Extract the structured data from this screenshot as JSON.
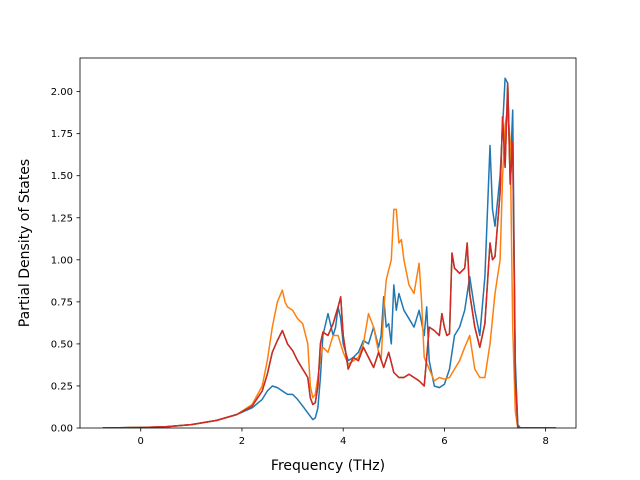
{
  "figure": {
    "background": "#ffffff"
  },
  "chart_data": {
    "type": "line",
    "title": "",
    "xlabel": "Frequency (THz)",
    "ylabel": "Partial Density of States",
    "xlim": [
      -1.2,
      8.6
    ],
    "ylim": [
      0.0,
      2.2
    ],
    "xticks": [
      0,
      2,
      4,
      6,
      8
    ],
    "yticks": [
      0.0,
      0.25,
      0.5,
      0.75,
      1.0,
      1.25,
      1.5,
      1.75,
      2.0
    ],
    "xtick_labels": [
      "0",
      "2",
      "4",
      "6",
      "8"
    ],
    "ytick_labels": [
      "0.00",
      "0.25",
      "0.50",
      "0.75",
      "1.00",
      "1.25",
      "1.50",
      "1.75",
      "2.00"
    ],
    "grid": false,
    "legend": null,
    "series": [
      {
        "color": "#1f77b4",
        "points": [
          [
            -0.75,
            0
          ],
          [
            0,
            0.003
          ],
          [
            0.5,
            0.008
          ],
          [
            1,
            0.02
          ],
          [
            1.5,
            0.045
          ],
          [
            1.9,
            0.08
          ],
          [
            2.2,
            0.12
          ],
          [
            2.4,
            0.17
          ],
          [
            2.5,
            0.22
          ],
          [
            2.6,
            0.25
          ],
          [
            2.7,
            0.24
          ],
          [
            2.8,
            0.22
          ],
          [
            2.9,
            0.2
          ],
          [
            3.0,
            0.2
          ],
          [
            3.1,
            0.17
          ],
          [
            3.2,
            0.13
          ],
          [
            3.3,
            0.09
          ],
          [
            3.4,
            0.05
          ],
          [
            3.45,
            0.06
          ],
          [
            3.5,
            0.12
          ],
          [
            3.55,
            0.3
          ],
          [
            3.6,
            0.55
          ],
          [
            3.7,
            0.68
          ],
          [
            3.8,
            0.55
          ],
          [
            3.85,
            0.6
          ],
          [
            3.9,
            0.72
          ],
          [
            3.95,
            0.65
          ],
          [
            4.0,
            0.5
          ],
          [
            4.1,
            0.4
          ],
          [
            4.2,
            0.42
          ],
          [
            4.3,
            0.45
          ],
          [
            4.4,
            0.52
          ],
          [
            4.5,
            0.5
          ],
          [
            4.6,
            0.6
          ],
          [
            4.7,
            0.48
          ],
          [
            4.75,
            0.55
          ],
          [
            4.8,
            0.78
          ],
          [
            4.85,
            0.6
          ],
          [
            4.9,
            0.62
          ],
          [
            4.95,
            0.5
          ],
          [
            5.0,
            0.85
          ],
          [
            5.05,
            0.7
          ],
          [
            5.1,
            0.8
          ],
          [
            5.2,
            0.7
          ],
          [
            5.3,
            0.65
          ],
          [
            5.4,
            0.6
          ],
          [
            5.45,
            0.65
          ],
          [
            5.5,
            0.7
          ],
          [
            5.6,
            0.55
          ],
          [
            5.65,
            0.72
          ],
          [
            5.7,
            0.4
          ],
          [
            5.8,
            0.25
          ],
          [
            5.9,
            0.24
          ],
          [
            6.0,
            0.26
          ],
          [
            6.1,
            0.35
          ],
          [
            6.2,
            0.55
          ],
          [
            6.3,
            0.6
          ],
          [
            6.4,
            0.7
          ],
          [
            6.5,
            0.9
          ],
          [
            6.6,
            0.7
          ],
          [
            6.7,
            0.55
          ],
          [
            6.8,
            0.9
          ],
          [
            6.9,
            1.68
          ],
          [
            6.95,
            1.3
          ],
          [
            7.0,
            1.2
          ],
          [
            7.1,
            1.5
          ],
          [
            7.2,
            2.08
          ],
          [
            7.25,
            2.05
          ],
          [
            7.3,
            1.5
          ],
          [
            7.35,
            1.89
          ],
          [
            7.4,
            0.4
          ],
          [
            7.45,
            0.02
          ],
          [
            7.5,
            0
          ],
          [
            8.2,
            0
          ]
        ]
      },
      {
        "color": "#ff7f0e",
        "points": [
          [
            -0.75,
            0
          ],
          [
            0,
            0.003
          ],
          [
            0.5,
            0.008
          ],
          [
            1,
            0.02
          ],
          [
            1.5,
            0.045
          ],
          [
            1.9,
            0.08
          ],
          [
            2.2,
            0.14
          ],
          [
            2.4,
            0.25
          ],
          [
            2.5,
            0.4
          ],
          [
            2.6,
            0.6
          ],
          [
            2.7,
            0.75
          ],
          [
            2.8,
            0.82
          ],
          [
            2.85,
            0.75
          ],
          [
            2.9,
            0.72
          ],
          [
            3.0,
            0.7
          ],
          [
            3.1,
            0.65
          ],
          [
            3.2,
            0.62
          ],
          [
            3.3,
            0.5
          ],
          [
            3.35,
            0.25
          ],
          [
            3.4,
            0.18
          ],
          [
            3.45,
            0.2
          ],
          [
            3.5,
            0.3
          ],
          [
            3.55,
            0.42
          ],
          [
            3.6,
            0.48
          ],
          [
            3.7,
            0.45
          ],
          [
            3.8,
            0.55
          ],
          [
            3.9,
            0.55
          ],
          [
            4.0,
            0.45
          ],
          [
            4.1,
            0.38
          ],
          [
            4.2,
            0.4
          ],
          [
            4.3,
            0.42
          ],
          [
            4.4,
            0.5
          ],
          [
            4.5,
            0.68
          ],
          [
            4.6,
            0.6
          ],
          [
            4.7,
            0.45
          ],
          [
            4.75,
            0.4
          ],
          [
            4.8,
            0.7
          ],
          [
            4.85,
            0.88
          ],
          [
            4.9,
            0.94
          ],
          [
            4.95,
            1.0
          ],
          [
            5.0,
            1.3
          ],
          [
            5.05,
            1.3
          ],
          [
            5.1,
            1.1
          ],
          [
            5.15,
            1.12
          ],
          [
            5.2,
            1.0
          ],
          [
            5.3,
            0.85
          ],
          [
            5.4,
            0.8
          ],
          [
            5.5,
            0.98
          ],
          [
            5.55,
            0.75
          ],
          [
            5.6,
            0.42
          ],
          [
            5.7,
            0.35
          ],
          [
            5.8,
            0.28
          ],
          [
            5.9,
            0.3
          ],
          [
            6.0,
            0.29
          ],
          [
            6.1,
            0.3
          ],
          [
            6.2,
            0.35
          ],
          [
            6.3,
            0.4
          ],
          [
            6.4,
            0.48
          ],
          [
            6.5,
            0.55
          ],
          [
            6.6,
            0.35
          ],
          [
            6.7,
            0.3
          ],
          [
            6.8,
            0.3
          ],
          [
            6.9,
            0.5
          ],
          [
            7.0,
            0.8
          ],
          [
            7.1,
            1.0
          ],
          [
            7.15,
            1.5
          ],
          [
            7.2,
            1.8
          ],
          [
            7.25,
            1.9
          ],
          [
            7.3,
            1.7
          ],
          [
            7.35,
            0.6
          ],
          [
            7.4,
            0.1
          ],
          [
            7.45,
            0
          ],
          [
            8.2,
            0
          ]
        ]
      },
      {
        "color": "#2ca02c",
        "points": [
          [
            -0.75,
            0
          ],
          [
            0,
            0.003
          ],
          [
            0.5,
            0.008
          ],
          [
            1,
            0.02
          ],
          [
            1.5,
            0.045
          ],
          [
            1.9,
            0.08
          ],
          [
            2.2,
            0.13
          ],
          [
            2.4,
            0.22
          ],
          [
            2.5,
            0.32
          ],
          [
            2.6,
            0.45
          ],
          [
            2.7,
            0.52
          ],
          [
            2.8,
            0.58
          ],
          [
            2.9,
            0.5
          ],
          [
            3.0,
            0.46
          ],
          [
            3.1,
            0.4
          ],
          [
            3.2,
            0.35
          ],
          [
            3.3,
            0.3
          ],
          [
            3.35,
            0.18
          ],
          [
            3.4,
            0.14
          ],
          [
            3.45,
            0.15
          ],
          [
            3.5,
            0.25
          ],
          [
            3.55,
            0.5
          ],
          [
            3.6,
            0.57
          ],
          [
            3.7,
            0.55
          ],
          [
            3.8,
            0.62
          ],
          [
            3.9,
            0.72
          ],
          [
            3.95,
            0.78
          ],
          [
            4.0,
            0.55
          ],
          [
            4.1,
            0.35
          ],
          [
            4.2,
            0.42
          ],
          [
            4.3,
            0.4
          ],
          [
            4.4,
            0.48
          ],
          [
            4.5,
            0.42
          ],
          [
            4.6,
            0.36
          ],
          [
            4.7,
            0.45
          ],
          [
            4.8,
            0.36
          ],
          [
            4.9,
            0.45
          ],
          [
            5.0,
            0.33
          ],
          [
            5.1,
            0.3
          ],
          [
            5.2,
            0.3
          ],
          [
            5.3,
            0.32
          ],
          [
            5.4,
            0.3
          ],
          [
            5.5,
            0.28
          ],
          [
            5.6,
            0.25
          ],
          [
            5.65,
            0.42
          ],
          [
            5.7,
            0.6
          ],
          [
            5.8,
            0.58
          ],
          [
            5.9,
            0.55
          ],
          [
            5.95,
            0.68
          ],
          [
            6.0,
            0.6
          ],
          [
            6.05,
            0.55
          ],
          [
            6.1,
            0.56
          ],
          [
            6.15,
            1.04
          ],
          [
            6.2,
            0.95
          ],
          [
            6.3,
            0.92
          ],
          [
            6.4,
            0.95
          ],
          [
            6.45,
            1.1
          ],
          [
            6.5,
            0.8
          ],
          [
            6.6,
            0.6
          ],
          [
            6.7,
            0.48
          ],
          [
            6.8,
            0.62
          ],
          [
            6.9,
            1.1
          ],
          [
            6.95,
            1.0
          ],
          [
            7.0,
            1.02
          ],
          [
            7.1,
            1.4
          ],
          [
            7.15,
            1.85
          ],
          [
            7.2,
            1.55
          ],
          [
            7.25,
            2.05
          ],
          [
            7.3,
            1.45
          ],
          [
            7.35,
            1.7
          ],
          [
            7.4,
            0.3
          ],
          [
            7.45,
            0
          ],
          [
            8.2,
            0
          ]
        ]
      },
      {
        "color": "#d62728",
        "points": [
          [
            -0.75,
            0
          ],
          [
            0,
            0.003
          ],
          [
            0.5,
            0.008
          ],
          [
            1,
            0.02
          ],
          [
            1.5,
            0.045
          ],
          [
            1.9,
            0.08
          ],
          [
            2.2,
            0.13
          ],
          [
            2.4,
            0.22
          ],
          [
            2.5,
            0.32
          ],
          [
            2.6,
            0.45
          ],
          [
            2.7,
            0.52
          ],
          [
            2.8,
            0.58
          ],
          [
            2.9,
            0.5
          ],
          [
            3.0,
            0.46
          ],
          [
            3.1,
            0.4
          ],
          [
            3.2,
            0.35
          ],
          [
            3.3,
            0.3
          ],
          [
            3.35,
            0.18
          ],
          [
            3.4,
            0.14
          ],
          [
            3.45,
            0.15
          ],
          [
            3.5,
            0.25
          ],
          [
            3.55,
            0.5
          ],
          [
            3.6,
            0.57
          ],
          [
            3.7,
            0.55
          ],
          [
            3.8,
            0.62
          ],
          [
            3.9,
            0.72
          ],
          [
            3.95,
            0.78
          ],
          [
            4.0,
            0.55
          ],
          [
            4.1,
            0.35
          ],
          [
            4.2,
            0.42
          ],
          [
            4.3,
            0.4
          ],
          [
            4.4,
            0.48
          ],
          [
            4.5,
            0.42
          ],
          [
            4.6,
            0.36
          ],
          [
            4.7,
            0.45
          ],
          [
            4.8,
            0.36
          ],
          [
            4.9,
            0.45
          ],
          [
            5.0,
            0.33
          ],
          [
            5.1,
            0.3
          ],
          [
            5.2,
            0.3
          ],
          [
            5.3,
            0.32
          ],
          [
            5.4,
            0.3
          ],
          [
            5.5,
            0.28
          ],
          [
            5.6,
            0.25
          ],
          [
            5.65,
            0.42
          ],
          [
            5.7,
            0.6
          ],
          [
            5.8,
            0.58
          ],
          [
            5.9,
            0.55
          ],
          [
            5.95,
            0.68
          ],
          [
            6.0,
            0.6
          ],
          [
            6.05,
            0.55
          ],
          [
            6.1,
            0.56
          ],
          [
            6.15,
            1.04
          ],
          [
            6.2,
            0.95
          ],
          [
            6.3,
            0.92
          ],
          [
            6.4,
            0.95
          ],
          [
            6.45,
            1.1
          ],
          [
            6.5,
            0.8
          ],
          [
            6.6,
            0.6
          ],
          [
            6.7,
            0.48
          ],
          [
            6.8,
            0.62
          ],
          [
            6.9,
            1.1
          ],
          [
            6.95,
            1.0
          ],
          [
            7.0,
            1.02
          ],
          [
            7.1,
            1.4
          ],
          [
            7.15,
            1.85
          ],
          [
            7.2,
            1.55
          ],
          [
            7.25,
            2.05
          ],
          [
            7.3,
            1.45
          ],
          [
            7.35,
            1.7
          ],
          [
            7.4,
            0.3
          ],
          [
            7.45,
            0
          ],
          [
            8.2,
            0
          ]
        ]
      }
    ]
  }
}
